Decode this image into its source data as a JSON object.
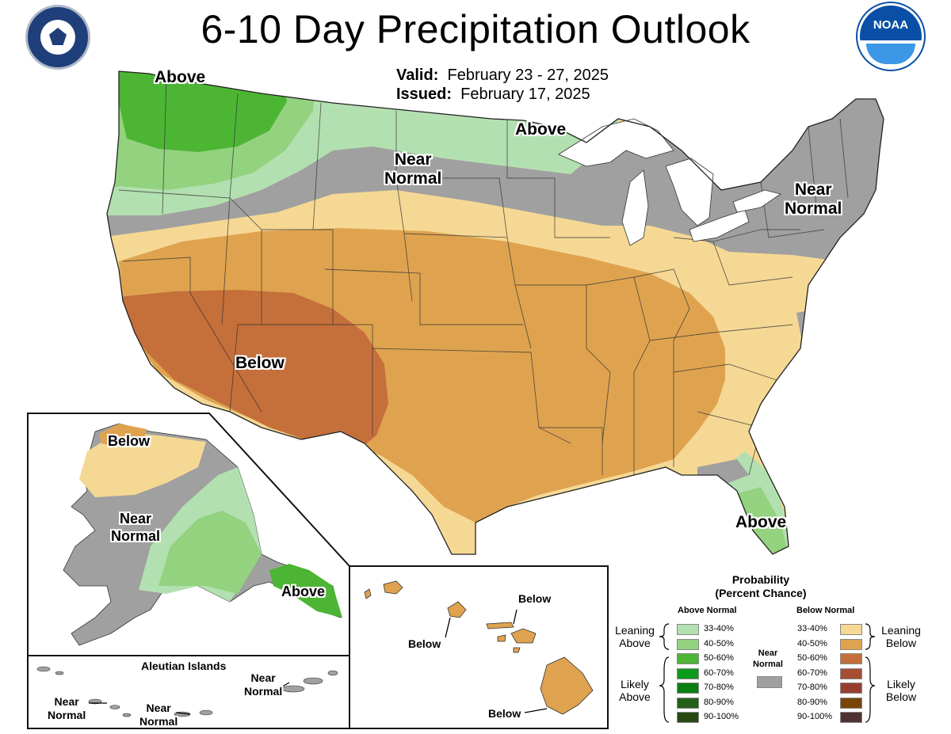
{
  "title": "6-10 Day Precipitation Outlook",
  "valid": {
    "label": "Valid:",
    "value": "February 23 - 27, 2025"
  },
  "issued": {
    "label": "Issued:",
    "value": "February 17, 2025"
  },
  "logos": {
    "left": "department-of-commerce-seal",
    "right": "noaa-logo",
    "right_text": "NOAA"
  },
  "regions": {
    "nw_above": "Above",
    "north_above": "Above",
    "north_near": [
      "Near",
      "Normal"
    ],
    "ne_near": [
      "Near",
      "Normal"
    ],
    "sw_below": "Below",
    "fl_above": "Above",
    "ak_below": "Below",
    "ak_near": [
      "Near",
      "Normal"
    ],
    "ak_above": "Above",
    "aleutian_title": "Aleutian Islands",
    "al_near1": [
      "Near",
      "Normal"
    ],
    "al_near2": [
      "Near",
      "Normal"
    ],
    "al_near3": [
      "Near",
      "Normal"
    ],
    "hi_below1": "Below",
    "hi_below2": "Below",
    "hi_below3": "Below"
  },
  "legend": {
    "title": [
      "Probability",
      "(Percent Chance)"
    ],
    "above_header": "Above Normal",
    "below_header": "Below Normal",
    "near": [
      "Near",
      "Normal"
    ],
    "leaning_above": [
      "Leaning",
      "Above"
    ],
    "likely_above": [
      "Likely",
      "Above"
    ],
    "leaning_below": [
      "Leaning",
      "Below"
    ],
    "likely_below": [
      "Likely",
      "Below"
    ],
    "above_bins": [
      {
        "label": "33-40%",
        "color": "#b3e0b0"
      },
      {
        "label": "40-50%",
        "color": "#93d27e"
      },
      {
        "label": "50-60%",
        "color": "#4cb534"
      },
      {
        "label": "60-70%",
        "color": "#0b9a1d"
      },
      {
        "label": "70-80%",
        "color": "#0a7d13"
      },
      {
        "label": "80-90%",
        "color": "#235f1a"
      },
      {
        "label": "90-100%",
        "color": "#284811"
      }
    ],
    "below_bins": [
      {
        "label": "33-40%",
        "color": "#f5d894"
      },
      {
        "label": "40-50%",
        "color": "#dfa34f"
      },
      {
        "label": "50-60%",
        "color": "#c56f3b"
      },
      {
        "label": "60-70%",
        "color": "#a64e32"
      },
      {
        "label": "70-80%",
        "color": "#973f2f"
      },
      {
        "label": "80-90%",
        "color": "#7a4404"
      },
      {
        "label": "90-100%",
        "color": "#4e3234"
      }
    ],
    "near_color": "#a0a0a0"
  }
}
